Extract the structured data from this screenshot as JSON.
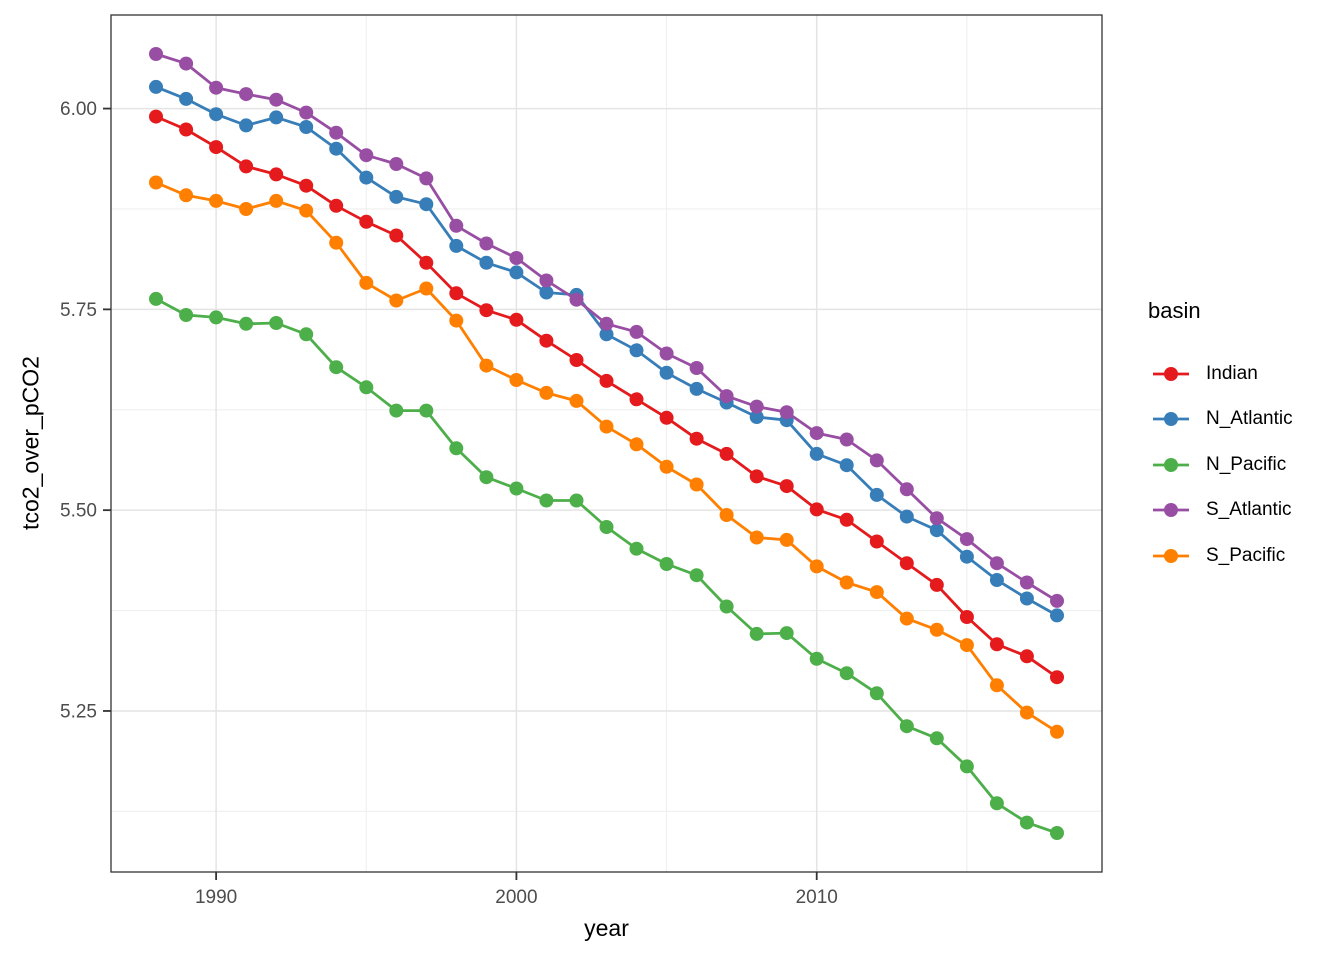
{
  "figure": {
    "background": "#FFFFFF",
    "panel_border_color": "#333333",
    "grid_major_color": "#E4E4E4",
    "grid_minor_color": "#EFEFEF",
    "tick_color": "#333333",
    "tick_label_color": "#4D4D4D"
  },
  "chart_data": {
    "type": "line",
    "title": "",
    "xlabel": "year",
    "ylabel": "tco2_over_pCO2",
    "legend_title": "basin",
    "legend_position": "right",
    "grid": true,
    "xlim": [
      1986.5,
      2019.5
    ],
    "ylim": [
      5.0495,
      6.1165
    ],
    "x_ticks": [
      1990,
      2000,
      2010
    ],
    "x_minor_ticks": [
      1995,
      2005,
      2015
    ],
    "y_ticks": [
      6.0,
      5.75,
      5.5,
      5.25
    ],
    "y_tick_labels": [
      "6.00",
      "5.75",
      "5.50",
      "5.25"
    ],
    "y_minor_ticks": [
      5.875,
      5.625,
      5.375,
      5.125
    ],
    "x": [
      1988,
      1989,
      1990,
      1991,
      1992,
      1993,
      1994,
      1995,
      1996,
      1997,
      1998,
      1999,
      2000,
      2001,
      2002,
      2003,
      2004,
      2005,
      2006,
      2007,
      2008,
      2009,
      2010,
      2011,
      2012,
      2013,
      2014,
      2015,
      2016,
      2017,
      2018
    ],
    "series": [
      {
        "name": "Indian",
        "color": "#E41A1C",
        "values": [
          5.99,
          5.974,
          5.952,
          5.928,
          5.918,
          5.904,
          5.879,
          5.859,
          5.842,
          5.808,
          5.77,
          5.749,
          5.737,
          5.711,
          5.687,
          5.661,
          5.638,
          5.615,
          5.589,
          5.57,
          5.542,
          5.53,
          5.501,
          5.488,
          5.461,
          5.434,
          5.407,
          5.367,
          5.333,
          5.318,
          5.292
        ]
      },
      {
        "name": "N_Atlantic",
        "color": "#377EB8",
        "values": [
          6.027,
          6.012,
          5.993,
          5.979,
          5.989,
          5.977,
          5.95,
          5.914,
          5.89,
          5.881,
          5.829,
          5.808,
          5.796,
          5.771,
          5.768,
          5.719,
          5.699,
          5.671,
          5.651,
          5.634,
          5.616,
          5.612,
          5.57,
          5.556,
          5.519,
          5.492,
          5.475,
          5.442,
          5.413,
          5.39,
          5.369
        ]
      },
      {
        "name": "N_Pacific",
        "color": "#4DAF4A",
        "values": [
          5.763,
          5.743,
          5.74,
          5.732,
          5.733,
          5.719,
          5.678,
          5.653,
          5.624,
          5.624,
          5.577,
          5.541,
          5.527,
          5.512,
          5.512,
          5.479,
          5.452,
          5.433,
          5.419,
          5.38,
          5.346,
          5.347,
          5.315,
          5.297,
          5.272,
          5.231,
          5.216,
          5.181,
          5.135,
          5.111,
          5.098
        ]
      },
      {
        "name": "S_Atlantic",
        "color": "#984EA3",
        "values": [
          6.068,
          6.056,
          6.026,
          6.018,
          6.011,
          5.995,
          5.97,
          5.942,
          5.931,
          5.913,
          5.854,
          5.832,
          5.814,
          5.786,
          5.762,
          5.732,
          5.722,
          5.695,
          5.677,
          5.642,
          5.629,
          5.622,
          5.596,
          5.588,
          5.562,
          5.526,
          5.49,
          5.464,
          5.434,
          5.41,
          5.387
        ]
      },
      {
        "name": "S_Pacific",
        "color": "#FF7F00",
        "values": [
          5.908,
          5.892,
          5.885,
          5.875,
          5.885,
          5.873,
          5.833,
          5.783,
          5.761,
          5.776,
          5.736,
          5.68,
          5.662,
          5.646,
          5.636,
          5.604,
          5.582,
          5.554,
          5.532,
          5.494,
          5.466,
          5.463,
          5.43,
          5.41,
          5.398,
          5.365,
          5.351,
          5.332,
          5.282,
          5.248,
          5.224
        ]
      }
    ]
  }
}
